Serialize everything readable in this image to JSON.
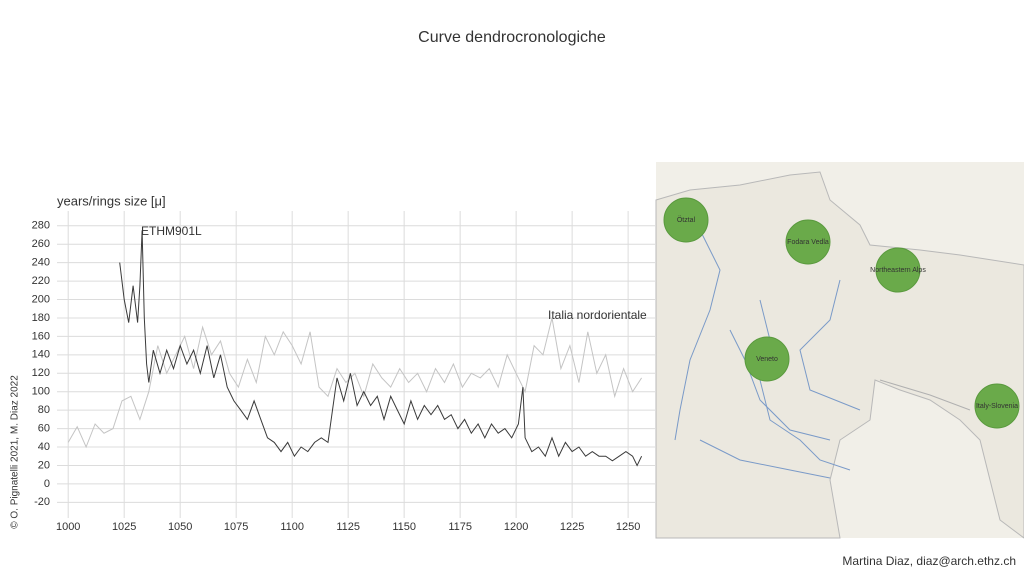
{
  "title": "Curve dendrocronologiche",
  "footer": "Martina Diaz, diaz@arch.ethz.ch",
  "copyright": "© O. Pignatelli 2021, M. Diaz 2022",
  "map": {
    "labels": [
      "Ötztal",
      "Fodara Vedla",
      "Northeastern Alps",
      "Veneto",
      "Italy-Slovenia"
    ]
  },
  "chart_data": {
    "type": "line",
    "y_label": "years/rings size [μ]",
    "xlim": [
      995,
      1262
    ],
    "xticks": [
      1000,
      1025,
      1050,
      1075,
      1100,
      1125,
      1150,
      1175,
      1200,
      1225,
      1250
    ],
    "ylim": [
      -37,
      296
    ],
    "yticks": [
      -20,
      0,
      20,
      40,
      60,
      80,
      100,
      120,
      140,
      160,
      180,
      200,
      220,
      240,
      260,
      280
    ],
    "grid": true,
    "series": [
      {
        "name": "Italia nordorientale",
        "color": "#c4c4c4",
        "x": [
          1000,
          1004,
          1008,
          1012,
          1016,
          1020,
          1024,
          1028,
          1032,
          1036,
          1040,
          1044,
          1048,
          1052,
          1056,
          1060,
          1064,
          1068,
          1072,
          1076,
          1080,
          1084,
          1088,
          1092,
          1096,
          1100,
          1104,
          1108,
          1112,
          1116,
          1120,
          1124,
          1128,
          1132,
          1136,
          1140,
          1144,
          1148,
          1152,
          1156,
          1160,
          1164,
          1168,
          1172,
          1176,
          1180,
          1184,
          1188,
          1192,
          1196,
          1200,
          1204,
          1208,
          1212,
          1216,
          1220,
          1224,
          1228,
          1232,
          1236,
          1240,
          1244,
          1248,
          1252,
          1256
        ],
        "values": [
          45,
          62,
          40,
          65,
          55,
          60,
          90,
          95,
          70,
          100,
          150,
          120,
          140,
          160,
          125,
          170,
          140,
          155,
          120,
          105,
          135,
          110,
          160,
          140,
          165,
          150,
          130,
          165,
          105,
          95,
          125,
          110,
          120,
          95,
          130,
          115,
          105,
          125,
          110,
          120,
          100,
          125,
          110,
          130,
          105,
          120,
          115,
          125,
          105,
          140,
          120,
          100,
          150,
          140,
          180,
          125,
          150,
          110,
          165,
          120,
          140,
          95,
          125,
          100,
          115
        ]
      },
      {
        "name": "ETHM901L",
        "color": "#3a3a3a",
        "x": [
          1023,
          1025,
          1027,
          1029,
          1031,
          1032,
          1033,
          1034,
          1035,
          1036,
          1038,
          1041,
          1044,
          1047,
          1050,
          1053,
          1056,
          1059,
          1062,
          1065,
          1068,
          1071,
          1074,
          1077,
          1080,
          1083,
          1086,
          1089,
          1092,
          1095,
          1098,
          1101,
          1104,
          1107,
          1110,
          1113,
          1116,
          1118,
          1120,
          1123,
          1126,
          1129,
          1132,
          1135,
          1138,
          1141,
          1144,
          1147,
          1150,
          1153,
          1156,
          1159,
          1162,
          1165,
          1168,
          1171,
          1174,
          1177,
          1180,
          1183,
          1186,
          1189,
          1192,
          1195,
          1198,
          1201,
          1203,
          1204,
          1207,
          1210,
          1213,
          1216,
          1219,
          1222,
          1225,
          1228,
          1231,
          1234,
          1237,
          1240,
          1243,
          1246,
          1249,
          1252,
          1254,
          1256
        ],
        "values": [
          240,
          200,
          175,
          215,
          175,
          215,
          275,
          180,
          130,
          110,
          145,
          120,
          145,
          125,
          150,
          130,
          145,
          120,
          150,
          115,
          140,
          105,
          90,
          80,
          70,
          90,
          70,
          50,
          45,
          35,
          45,
          30,
          40,
          35,
          45,
          50,
          45,
          80,
          115,
          90,
          120,
          85,
          100,
          85,
          95,
          70,
          95,
          80,
          65,
          90,
          70,
          85,
          75,
          85,
          70,
          75,
          60,
          70,
          55,
          65,
          50,
          65,
          55,
          60,
          50,
          65,
          105,
          50,
          35,
          40,
          30,
          50,
          30,
          45,
          35,
          40,
          30,
          35,
          30,
          30,
          25,
          30,
          35,
          30,
          20,
          30
        ]
      }
    ]
  }
}
